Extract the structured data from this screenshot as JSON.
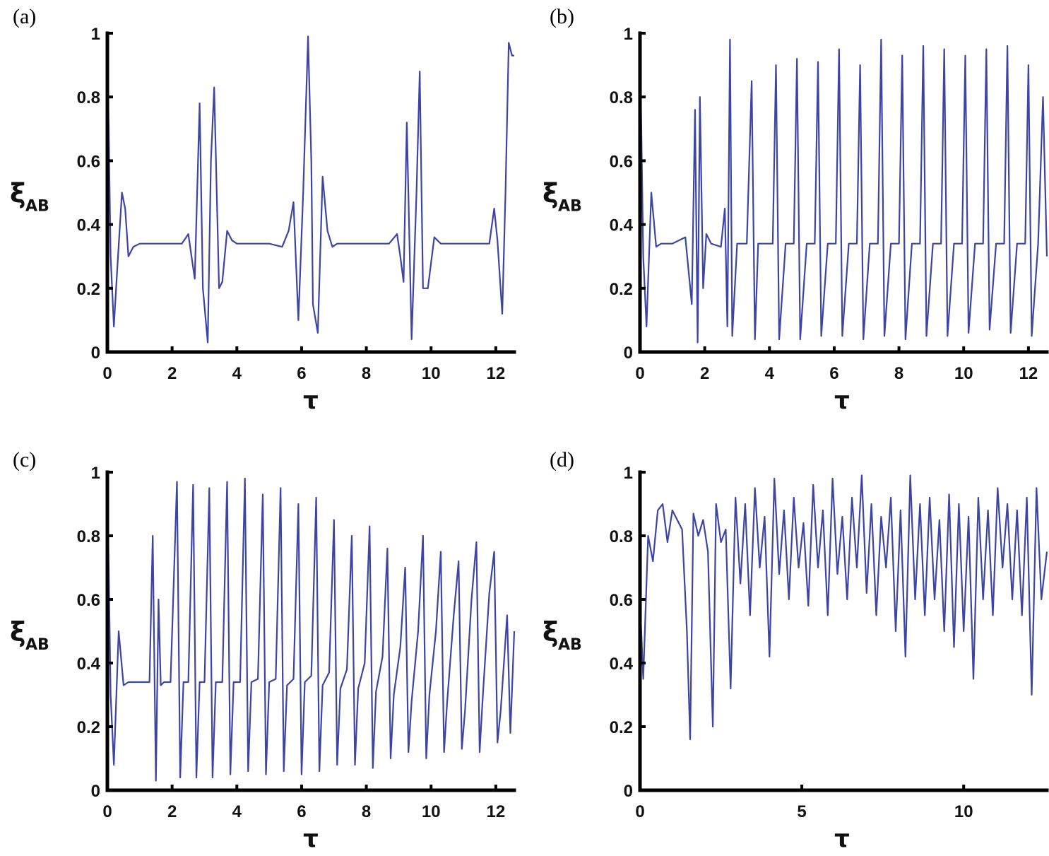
{
  "chart_data": [
    {
      "panel": "(a)",
      "type": "line",
      "xlabel": "τ",
      "ylabel": "ξ",
      "ylabel_sub": "AB",
      "xlim": [
        0,
        12.57
      ],
      "ylim": [
        0,
        1
      ],
      "xticks": [
        "0",
        "2",
        "4",
        "6",
        "8",
        "10",
        "12"
      ],
      "yticks": [
        "0",
        "0.2",
        "0.4",
        "0.6",
        "0.8",
        "1"
      ],
      "series": [
        {
          "values_x": [
            0,
            0.1,
            0.2,
            0.3,
            0.45,
            0.55,
            0.65,
            0.8,
            1.0,
            1.5,
            2.0,
            2.3,
            2.5,
            2.6,
            2.7,
            2.85,
            2.95,
            3.1,
            3.2,
            3.3,
            3.45,
            3.55,
            3.7,
            3.85,
            4.0,
            4.3,
            5.0,
            5.4,
            5.6,
            5.75,
            5.9,
            6.05,
            6.2,
            6.3,
            6.35,
            6.5,
            6.65,
            6.8,
            6.95,
            7.1,
            7.3,
            8.0,
            8.7,
            8.95,
            9.05,
            9.15,
            9.25,
            9.4,
            9.55,
            9.65,
            9.75,
            9.9,
            10.1,
            10.3,
            10.6,
            11.0,
            11.5,
            11.8,
            11.95,
            12.05,
            12.2,
            12.3,
            12.4,
            12.5,
            12.57
          ],
          "values_y": [
            0.98,
            0.3,
            0.08,
            0.25,
            0.5,
            0.45,
            0.3,
            0.33,
            0.34,
            0.34,
            0.34,
            0.34,
            0.37,
            0.3,
            0.23,
            0.78,
            0.2,
            0.03,
            0.6,
            0.83,
            0.2,
            0.22,
            0.38,
            0.35,
            0.34,
            0.34,
            0.34,
            0.33,
            0.38,
            0.47,
            0.1,
            0.5,
            0.99,
            0.6,
            0.15,
            0.06,
            0.55,
            0.38,
            0.33,
            0.34,
            0.34,
            0.34,
            0.34,
            0.37,
            0.3,
            0.22,
            0.72,
            0.04,
            0.5,
            0.88,
            0.2,
            0.2,
            0.36,
            0.34,
            0.34,
            0.34,
            0.34,
            0.34,
            0.45,
            0.35,
            0.12,
            0.5,
            0.97,
            0.93,
            0.93
          ]
        }
      ]
    },
    {
      "panel": "(b)",
      "type": "line",
      "xlabel": "τ",
      "ylabel": "ξ",
      "ylabel_sub": "AB",
      "xlim": [
        0,
        12.57
      ],
      "ylim": [
        0,
        1
      ],
      "xticks": [
        "0",
        "2",
        "4",
        "6",
        "8",
        "10",
        "12"
      ],
      "yticks": [
        "0",
        "0.2",
        "0.4",
        "0.6",
        "0.8",
        "1"
      ],
      "series": [
        {
          "values_x": [
            0,
            0.1,
            0.2,
            0.35,
            0.5,
            0.65,
            0.8,
            1.0,
            1.4,
            1.6,
            1.7,
            1.78,
            1.85,
            1.95,
            2.05,
            2.2,
            2.5,
            2.62,
            2.7,
            2.78,
            2.85,
            3.0,
            3.3,
            3.45,
            3.55,
            3.65,
            3.8,
            4.1,
            4.2,
            4.3,
            4.5,
            4.75,
            4.85,
            4.95,
            5.15,
            5.4,
            5.5,
            5.6,
            5.8,
            6.05,
            6.15,
            6.25,
            6.45,
            6.7,
            6.8,
            6.9,
            7.1,
            7.35,
            7.45,
            7.55,
            7.75,
            8.0,
            8.1,
            8.2,
            8.4,
            8.65,
            8.75,
            8.85,
            9.05,
            9.3,
            9.4,
            9.5,
            9.7,
            9.95,
            10.05,
            10.15,
            10.35,
            10.6,
            10.7,
            10.8,
            11.0,
            11.25,
            11.35,
            11.45,
            11.65,
            11.9,
            12.0,
            12.1,
            12.3,
            12.45,
            12.57
          ],
          "values_y": [
            0.98,
            0.3,
            0.08,
            0.5,
            0.33,
            0.34,
            0.34,
            0.34,
            0.36,
            0.15,
            0.76,
            0.03,
            0.8,
            0.2,
            0.37,
            0.34,
            0.33,
            0.45,
            0.08,
            0.98,
            0.05,
            0.34,
            0.34,
            0.85,
            0.04,
            0.34,
            0.34,
            0.34,
            0.9,
            0.04,
            0.34,
            0.34,
            0.92,
            0.04,
            0.34,
            0.34,
            0.91,
            0.05,
            0.34,
            0.34,
            0.95,
            0.05,
            0.34,
            0.34,
            0.9,
            0.04,
            0.34,
            0.34,
            0.98,
            0.05,
            0.34,
            0.34,
            0.93,
            0.04,
            0.34,
            0.34,
            0.96,
            0.05,
            0.34,
            0.34,
            0.95,
            0.05,
            0.34,
            0.34,
            0.93,
            0.06,
            0.34,
            0.34,
            0.95,
            0.07,
            0.34,
            0.34,
            0.96,
            0.06,
            0.34,
            0.34,
            0.9,
            0.05,
            0.34,
            0.8,
            0.3
          ]
        }
      ]
    },
    {
      "panel": "(c)",
      "type": "line",
      "xlabel": "τ",
      "ylabel": "ξ",
      "ylabel_sub": "AB",
      "xlim": [
        0,
        12.57
      ],
      "ylim": [
        0,
        1
      ],
      "xticks": [
        "0",
        "2",
        "4",
        "6",
        "8",
        "10",
        "12"
      ],
      "yticks": [
        "0",
        "0.2",
        "0.4",
        "0.6",
        "0.8",
        "1"
      ],
      "series": [
        {
          "values_x": [
            0,
            0.1,
            0.2,
            0.35,
            0.5,
            0.65,
            0.8,
            1.0,
            1.3,
            1.4,
            1.5,
            1.58,
            1.65,
            1.75,
            1.95,
            2.15,
            2.25,
            2.35,
            2.5,
            2.65,
            2.75,
            2.85,
            3.0,
            3.15,
            3.25,
            3.35,
            3.55,
            3.7,
            3.8,
            3.9,
            4.1,
            4.25,
            4.35,
            4.45,
            4.65,
            4.8,
            4.9,
            5.0,
            5.2,
            5.35,
            5.45,
            5.55,
            5.75,
            5.9,
            6.0,
            6.1,
            6.3,
            6.45,
            6.55,
            6.65,
            6.85,
            7.0,
            7.1,
            7.2,
            7.4,
            7.55,
            7.65,
            7.75,
            7.95,
            8.1,
            8.2,
            8.3,
            8.5,
            8.65,
            8.75,
            8.85,
            9.05,
            9.2,
            9.3,
            9.4,
            9.6,
            9.75,
            9.85,
            9.95,
            10.15,
            10.3,
            10.4,
            10.5,
            10.7,
            10.85,
            10.95,
            11.05,
            11.25,
            11.4,
            11.5,
            11.6,
            11.8,
            11.95,
            12.05,
            12.15,
            12.35,
            12.45,
            12.57
          ],
          "values_y": [
            0.98,
            0.3,
            0.08,
            0.5,
            0.33,
            0.34,
            0.34,
            0.34,
            0.34,
            0.8,
            0.03,
            0.6,
            0.33,
            0.34,
            0.34,
            0.97,
            0.04,
            0.34,
            0.34,
            0.96,
            0.04,
            0.34,
            0.34,
            0.95,
            0.04,
            0.34,
            0.34,
            0.97,
            0.05,
            0.34,
            0.34,
            0.98,
            0.06,
            0.34,
            0.35,
            0.93,
            0.05,
            0.34,
            0.35,
            0.95,
            0.06,
            0.33,
            0.35,
            0.9,
            0.05,
            0.34,
            0.36,
            0.92,
            0.06,
            0.33,
            0.37,
            0.85,
            0.08,
            0.32,
            0.38,
            0.8,
            0.08,
            0.32,
            0.4,
            0.83,
            0.07,
            0.31,
            0.42,
            0.76,
            0.1,
            0.3,
            0.45,
            0.7,
            0.12,
            0.28,
            0.5,
            0.8,
            0.1,
            0.3,
            0.5,
            0.75,
            0.12,
            0.28,
            0.55,
            0.72,
            0.13,
            0.25,
            0.6,
            0.78,
            0.12,
            0.3,
            0.62,
            0.75,
            0.15,
            0.25,
            0.55,
            0.18,
            0.5
          ]
        }
      ]
    },
    {
      "panel": "(d)",
      "type": "line",
      "xlabel": "τ",
      "ylabel": "ξ",
      "ylabel_sub": "AB",
      "xlim": [
        0,
        12.57
      ],
      "ylim": [
        0,
        1
      ],
      "xticks": [
        "0",
        "5",
        "10"
      ],
      "yticks": [
        "0",
        "0.2",
        "0.4",
        "0.6",
        "0.8",
        "1"
      ],
      "series": [
        {
          "values_x": [
            0,
            0.1,
            0.25,
            0.4,
            0.55,
            0.7,
            0.85,
            1.0,
            1.15,
            1.3,
            1.45,
            1.55,
            1.65,
            1.8,
            1.95,
            2.1,
            2.25,
            2.35,
            2.5,
            2.65,
            2.8,
            2.95,
            3.1,
            3.25,
            3.4,
            3.55,
            3.7,
            3.85,
            4.0,
            4.15,
            4.3,
            4.45,
            4.6,
            4.75,
            4.9,
            5.05,
            5.2,
            5.35,
            5.5,
            5.65,
            5.8,
            5.95,
            6.1,
            6.25,
            6.4,
            6.55,
            6.7,
            6.85,
            7.0,
            7.15,
            7.3,
            7.45,
            7.6,
            7.75,
            7.9,
            8.05,
            8.2,
            8.35,
            8.5,
            8.65,
            8.8,
            8.95,
            9.1,
            9.25,
            9.4,
            9.55,
            9.7,
            9.85,
            10.0,
            10.15,
            10.3,
            10.45,
            10.6,
            10.75,
            10.9,
            11.05,
            11.2,
            11.35,
            11.5,
            11.65,
            11.8,
            11.95,
            12.1,
            12.25,
            12.4,
            12.57
          ],
          "values_y": [
            0.6,
            0.35,
            0.8,
            0.72,
            0.88,
            0.9,
            0.78,
            0.88,
            0.85,
            0.82,
            0.5,
            0.16,
            0.87,
            0.8,
            0.85,
            0.75,
            0.2,
            0.9,
            0.78,
            0.82,
            0.32,
            0.92,
            0.65,
            0.9,
            0.55,
            0.95,
            0.7,
            0.86,
            0.42,
            0.98,
            0.68,
            0.88,
            0.6,
            0.92,
            0.7,
            0.84,
            0.58,
            0.96,
            0.7,
            0.88,
            0.55,
            0.98,
            0.68,
            0.86,
            0.6,
            0.92,
            0.7,
            0.99,
            0.62,
            0.9,
            0.55,
            0.86,
            0.7,
            0.92,
            0.5,
            0.88,
            0.42,
            0.99,
            0.6,
            0.9,
            0.55,
            0.92,
            0.6,
            0.85,
            0.5,
            0.93,
            0.45,
            0.9,
            0.5,
            0.86,
            0.35,
            0.92,
            0.6,
            0.88,
            0.55,
            0.95,
            0.7,
            0.9,
            0.6,
            0.88,
            0.55,
            0.92,
            0.3,
            0.95,
            0.6,
            0.75
          ]
        }
      ]
    }
  ],
  "colors": {
    "series": "#3d44a3"
  }
}
